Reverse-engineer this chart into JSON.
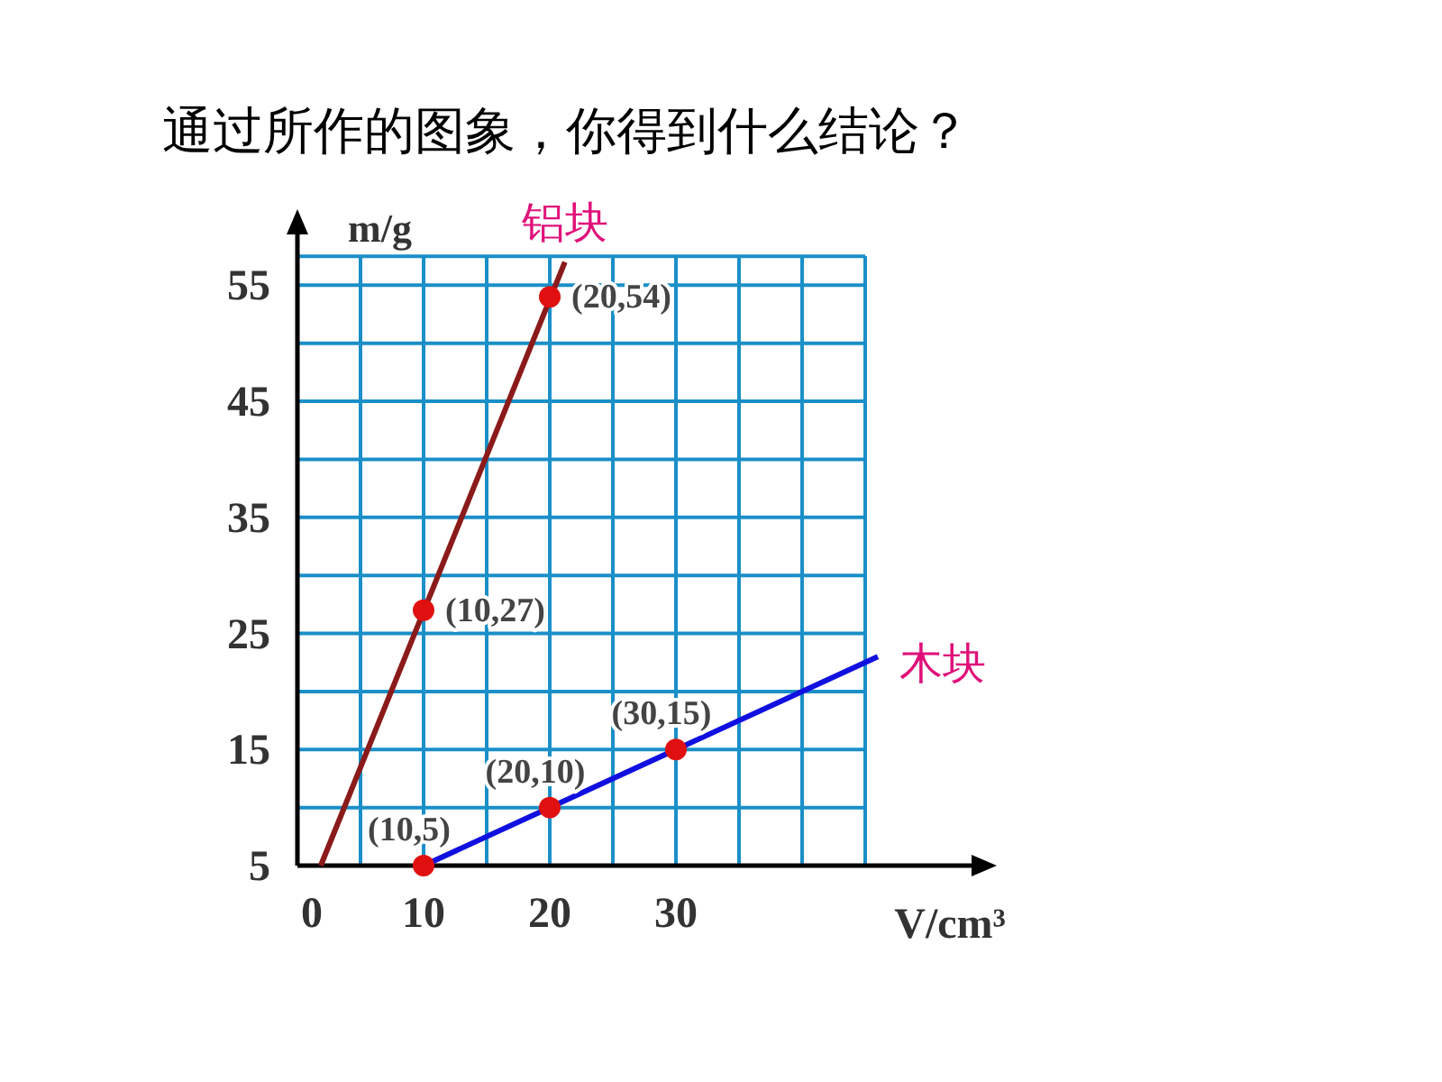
{
  "chart_data": {
    "type": "line",
    "title": "通过所作的图象，你得到什么结论？",
    "xlabel": "V/cm³",
    "ylabel": "m/g",
    "xlim": [
      0,
      54
    ],
    "ylim": [
      5,
      60
    ],
    "xticks": [
      0,
      {
        "value": 5,
        "label": null
      },
      10,
      {
        "value": 15,
        "label": null
      },
      20,
      {
        "value": 25,
        "label": null
      },
      30,
      {
        "value": 35,
        "label": null
      },
      {
        "value": 40,
        "label": null
      },
      {
        "value": 45,
        "label": null
      }
    ],
    "yticks": [
      5,
      {
        "value": 10,
        "label": null
      },
      15,
      {
        "value": 20,
        "label": null
      },
      25,
      {
        "value": 30,
        "label": null
      },
      35,
      {
        "value": 40,
        "label": null
      },
      45,
      {
        "value": 50,
        "label": null
      },
      55
    ],
    "grid": true,
    "annotations": [
      {
        "text": "(10,27)",
        "x": 10,
        "y": 27
      },
      {
        "text": "(20,54)",
        "x": 20,
        "y": 54
      },
      {
        "text": "(10,5)",
        "x": 10,
        "y": 5
      },
      {
        "text": "(20,10)",
        "x": 20,
        "y": 10
      },
      {
        "text": "(30,15)",
        "x": 30,
        "y": 15
      }
    ],
    "series": [
      {
        "name": "铝块",
        "color": "#8b1a1a",
        "x": [
          1.85,
          21.2
        ],
        "values": [
          5,
          57
        ]
      },
      {
        "name": "木块",
        "color": "#1010e0",
        "x": [
          10,
          46
        ],
        "values": [
          5,
          23
        ]
      },
      {
        "type": "scatter",
        "color": "#e01010",
        "marker": "circle",
        "x": [
          10,
          20
        ],
        "values": [
          27,
          54
        ]
      },
      {
        "type": "scatter",
        "color": "#e01010",
        "marker": "circle",
        "x": [
          10,
          20,
          30
        ],
        "values": [
          5,
          10,
          15
        ]
      }
    ]
  }
}
